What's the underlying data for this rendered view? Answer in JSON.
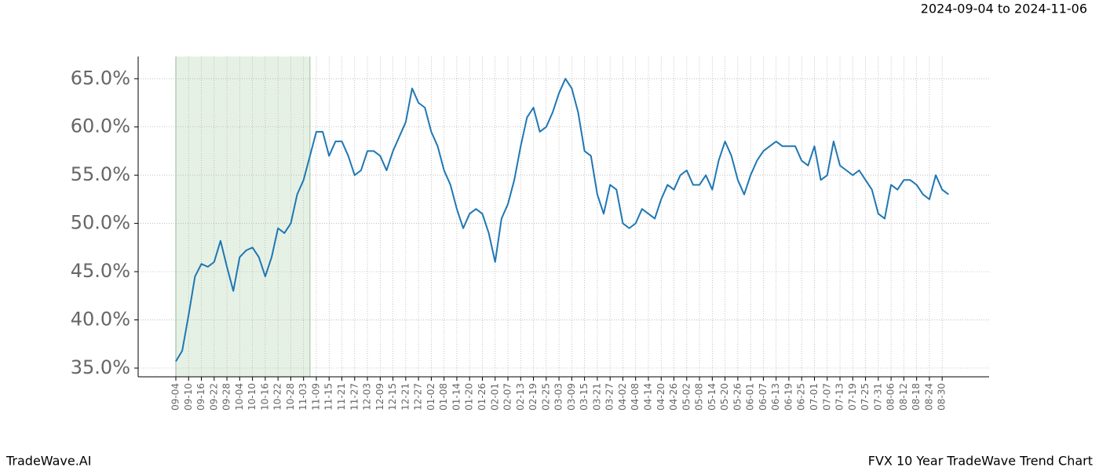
{
  "header": {
    "date_range": "2024-09-04 to 2024-11-06"
  },
  "footer": {
    "brand": "TradeWave.AI",
    "chart_name": "FVX 10 Year TradeWave Trend Chart"
  },
  "chart_data": {
    "type": "line",
    "categories": [
      "09-04",
      null,
      "09-10",
      null,
      "09-16",
      null,
      "09-22",
      null,
      "09-28",
      null,
      "10-04",
      null,
      "10-10",
      null,
      "10-16",
      null,
      "10-22",
      null,
      "10-28",
      null,
      "11-03",
      null,
      "11-09",
      null,
      "11-15",
      null,
      "11-21",
      null,
      "11-27",
      null,
      "12-03",
      null,
      "12-09",
      null,
      "12-15",
      null,
      "12-21",
      null,
      "12-27",
      null,
      "01-02",
      null,
      "01-08",
      null,
      "01-14",
      null,
      "01-20",
      null,
      "01-26",
      null,
      "02-01",
      null,
      "02-07",
      null,
      "02-13",
      null,
      "02-19",
      null,
      "02-25",
      null,
      "03-03",
      null,
      "03-09",
      null,
      "03-15",
      null,
      "03-21",
      null,
      "03-27",
      null,
      "04-02",
      null,
      "04-08",
      null,
      "04-14",
      null,
      "04-20",
      null,
      "04-26",
      null,
      "05-02",
      null,
      "05-08",
      null,
      "05-14",
      null,
      "05-20",
      null,
      "05-26",
      null,
      "06-01",
      null,
      "06-07",
      null,
      "06-13",
      null,
      "06-19",
      null,
      "06-25",
      null,
      "07-01",
      null,
      "07-07",
      null,
      "07-13",
      null,
      "07-19",
      null,
      "07-25",
      null,
      "07-31",
      null,
      "08-06",
      null,
      "08-12",
      null,
      "08-18",
      null,
      "08-24",
      null,
      "08-30",
      null
    ],
    "series": [
      {
        "color": "#1f77b4",
        "values": [
          35.7,
          36.8,
          40.5,
          44.5,
          45.8,
          45.5,
          46.0,
          48.2,
          45.5,
          43.0,
          46.5,
          47.2,
          47.5,
          46.5,
          44.5,
          46.5,
          49.5,
          49.0,
          50.0,
          53.0,
          54.5,
          57.0,
          59.5,
          59.5,
          57.0,
          58.5,
          58.5,
          57.0,
          55.0,
          55.5,
          57.5,
          57.5,
          57.0,
          55.5,
          57.5,
          59.0,
          60.5,
          64.0,
          62.5,
          62.0,
          59.5,
          58.0,
          55.5,
          54.0,
          51.5,
          49.5,
          51.0,
          51.5,
          51.0,
          49.0,
          46.0,
          50.5,
          52.0,
          54.5,
          58.0,
          61.0,
          62.0,
          59.5,
          60.0,
          61.5,
          63.5,
          65.0,
          64.0,
          61.5,
          57.5,
          57.0,
          53.0,
          51.0,
          54.0,
          53.5,
          50.0,
          49.5,
          50.0,
          51.5,
          51.0,
          50.5,
          52.5,
          54.0,
          53.5,
          55.0,
          55.5,
          54.0,
          54.0,
          55.0,
          53.5,
          56.5,
          58.5,
          57.0,
          54.5,
          53.0,
          55.0,
          56.5,
          57.5,
          58.0,
          58.5,
          58.0,
          58.0,
          58.0,
          56.5,
          56.0,
          58.0,
          54.5,
          55.0,
          58.5,
          56.0,
          55.5,
          55.0,
          55.5,
          54.5,
          53.5,
          51.0,
          50.5,
          54.0,
          53.5,
          54.5,
          54.5,
          54.0,
          53.0,
          52.5,
          55.0,
          53.5,
          53.0
        ]
      }
    ],
    "highlight": {
      "from": 0,
      "to": 21,
      "color": "#d5e8d4"
    },
    "ylim": [
      34.1,
      67.3
    ],
    "yticks": [
      {
        "value": 35,
        "label": "35.0%"
      },
      {
        "value": 40,
        "label": "40.0%"
      },
      {
        "value": 45,
        "label": "45.0%"
      },
      {
        "value": 50,
        "label": "50.0%"
      },
      {
        "value": 55,
        "label": "55.0%"
      },
      {
        "value": 60,
        "label": "60.0%"
      },
      {
        "value": 65,
        "label": "65.0%"
      }
    ],
    "grid": true
  }
}
